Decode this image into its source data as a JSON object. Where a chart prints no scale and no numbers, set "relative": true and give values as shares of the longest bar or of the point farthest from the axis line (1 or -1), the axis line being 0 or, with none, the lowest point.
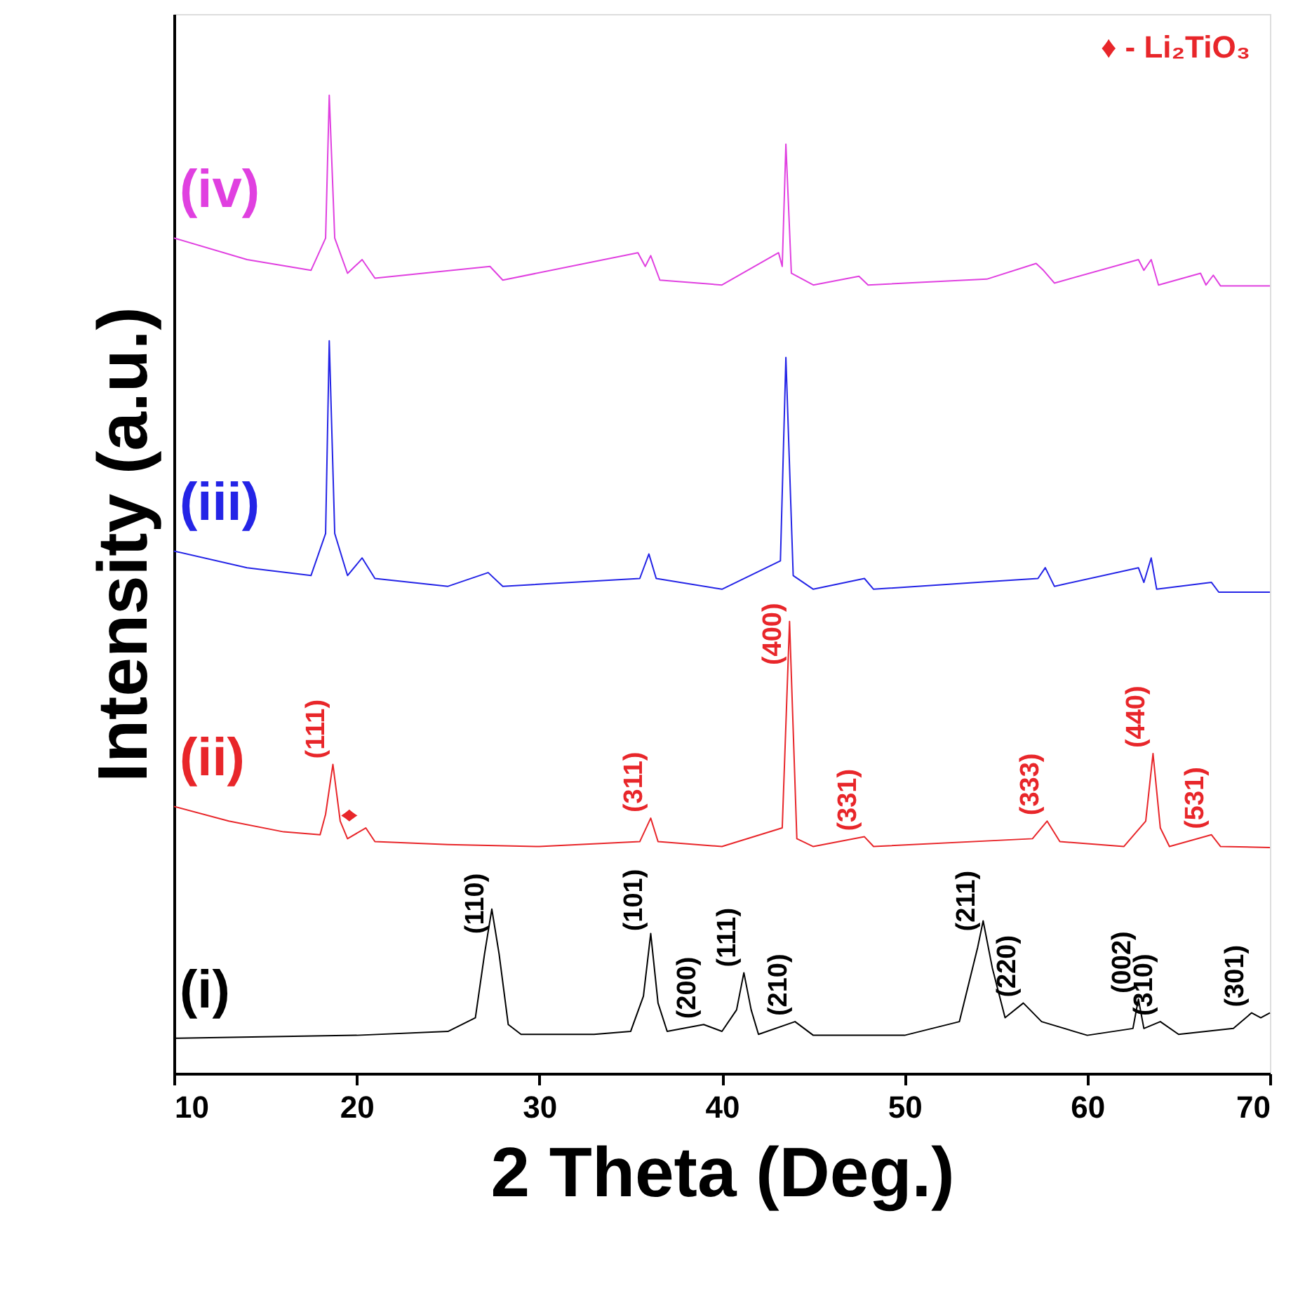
{
  "chart_data": {
    "type": "line",
    "relative": true,
    "xlabel": "2 Theta (Deg.)",
    "ylabel": "Intensity (a.u.)",
    "xlim": [
      10,
      70
    ],
    "xticks": [
      10,
      20,
      30,
      40,
      50,
      60,
      70
    ],
    "grid": false,
    "marker": "none",
    "line_style": "solid",
    "tick_labels": "x",
    "series": [
      {
        "name": "(i)",
        "color": "#000000",
        "x": [
          10,
          20,
          25,
          26.5,
          27,
          27.4,
          27.8,
          28.3,
          29,
          33,
          35,
          35.7,
          36.1,
          36.5,
          37,
          39,
          40,
          40.8,
          41.2,
          41.6,
          42,
          44,
          45,
          50,
          53,
          54,
          54.3,
          54.8,
          55.5,
          56.5,
          57.5,
          60,
          62.5,
          62.8,
          63.1,
          64,
          65,
          68,
          69,
          69.5,
          70
        ],
        "values": [
          0.036,
          0.039,
          0.043,
          0.057,
          0.122,
          0.168,
          0.122,
          0.05,
          0.04,
          0.04,
          0.043,
          0.079,
          0.143,
          0.072,
          0.043,
          0.05,
          0.043,
          0.065,
          0.103,
          0.065,
          0.04,
          0.053,
          0.039,
          0.039,
          0.053,
          0.129,
          0.156,
          0.108,
          0.057,
          0.072,
          0.053,
          0.039,
          0.046,
          0.076,
          0.046,
          0.053,
          0.04,
          0.046,
          0.062,
          0.057,
          0.062
        ]
      },
      {
        "name": "(ii)",
        "color": "#e8262a",
        "x": [
          10,
          13,
          16,
          18,
          18.3,
          18.7,
          19.1,
          19.5,
          20.5,
          21,
          25,
          30,
          35.5,
          36.1,
          36.5,
          40,
          43.3,
          43.7,
          44.1,
          45,
          47.8,
          48.3,
          57,
          57.8,
          58.5,
          62,
          63.2,
          63.6,
          64,
          64.5,
          66.8,
          67.3,
          70
        ],
        "values": [
          0.273,
          0.258,
          0.247,
          0.244,
          0.265,
          0.316,
          0.258,
          0.24,
          0.251,
          0.237,
          0.234,
          0.232,
          0.237,
          0.261,
          0.237,
          0.232,
          0.251,
          0.462,
          0.24,
          0.232,
          0.242,
          0.232,
          0.24,
          0.258,
          0.237,
          0.232,
          0.258,
          0.327,
          0.251,
          0.232,
          0.244,
          0.232,
          0.231
        ]
      },
      {
        "name": "(iii)",
        "color": "#2424e6",
        "x": [
          10,
          14,
          17.5,
          18.3,
          18.5,
          18.8,
          19.5,
          20.3,
          21,
          25,
          27.2,
          28,
          35.5,
          36,
          36.4,
          40,
          43.2,
          43.5,
          43.9,
          45,
          47.8,
          48.3,
          54,
          57.3,
          57.7,
          58.2,
          62.8,
          63.1,
          63.5,
          63.8,
          66.8,
          67.2,
          70
        ],
        "values": [
          0.534,
          0.517,
          0.509,
          0.552,
          0.749,
          0.552,
          0.509,
          0.527,
          0.506,
          0.498,
          0.512,
          0.498,
          0.506,
          0.531,
          0.506,
          0.495,
          0.524,
          0.732,
          0.509,
          0.495,
          0.506,
          0.495,
          0.502,
          0.506,
          0.517,
          0.498,
          0.517,
          0.502,
          0.527,
          0.495,
          0.502,
          0.492,
          0.492
        ]
      },
      {
        "name": "(iv)",
        "color": "#e040e0",
        "x": [
          10,
          14,
          17.5,
          18.3,
          18.5,
          18.8,
          19.5,
          20.3,
          21,
          27.3,
          28,
          35.4,
          35.8,
          36.1,
          36.6,
          40,
          43.1,
          43.3,
          43.5,
          43.8,
          45,
          47.5,
          48,
          54.5,
          57.2,
          57.6,
          58.2,
          62.8,
          63.1,
          63.5,
          63.9,
          66.2,
          66.5,
          66.9,
          67.3,
          70
        ],
        "values": [
          0.854,
          0.832,
          0.821,
          0.854,
          1,
          0.854,
          0.818,
          0.832,
          0.813,
          0.825,
          0.811,
          0.839,
          0.825,
          0.836,
          0.811,
          0.806,
          0.839,
          0.825,
          0.95,
          0.818,
          0.806,
          0.815,
          0.806,
          0.812,
          0.828,
          0.821,
          0.808,
          0.832,
          0.821,
          0.832,
          0.806,
          0.818,
          0.806,
          0.816,
          0.805,
          0.805
        ]
      }
    ],
    "annotations": [
      {
        "text": "(110)",
        "x": 27.4,
        "y": 0.168
      },
      {
        "text": "(101)",
        "x": 36.1,
        "y": 0.143
      },
      {
        "text": "(200)",
        "x": 39,
        "y": 0.05
      },
      {
        "text": "(111)",
        "x": 41.2,
        "y": 0.103
      },
      {
        "text": "(210)",
        "x": 44,
        "y": 0.053
      },
      {
        "text": "(211)",
        "x": 54.3,
        "y": 0.156
      },
      {
        "text": "(220)",
        "x": 56.5,
        "y": 0.072
      },
      {
        "text": "(002)",
        "x": 62.8,
        "y": 0.076
      },
      {
        "text": "(310)",
        "x": 64,
        "y": 0.053
      },
      {
        "text": "(301)",
        "x": 69,
        "y": 0.062
      },
      {
        "text": "(111)",
        "x": 18.7,
        "y": 0.316
      },
      {
        "text": "♦",
        "x": 20.5,
        "y": 0.251
      },
      {
        "text": "(311)",
        "x": 36.1,
        "y": 0.261
      },
      {
        "text": "(400)",
        "x": 43.7,
        "y": 0.462
      },
      {
        "text": "(331)",
        "x": 47.8,
        "y": 0.242
      },
      {
        "text": "(333)",
        "x": 57.8,
        "y": 0.258
      },
      {
        "text": "(440)",
        "x": 63.6,
        "y": 0.327
      },
      {
        "text": "(531)",
        "x": 66.8,
        "y": 0.244
      },
      "♦ - Li₂TiO₃"
    ]
  }
}
